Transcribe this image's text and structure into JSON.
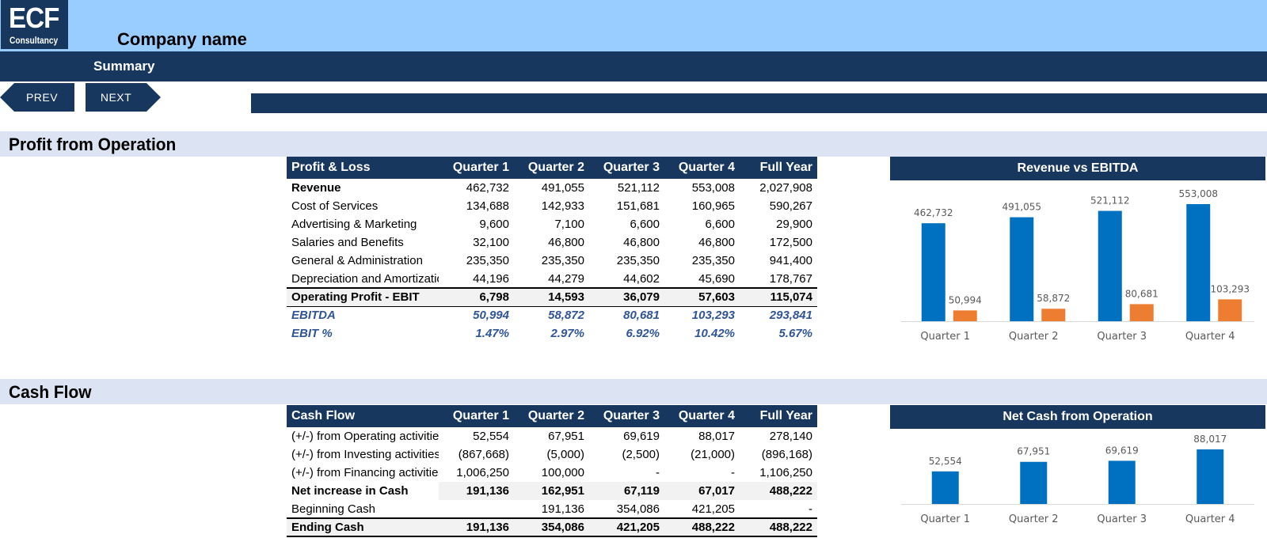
{
  "header": {
    "logo_main": "ECF",
    "logo_sub": "Consultancy",
    "company_name": "Company name",
    "page_title": "Summary"
  },
  "nav": {
    "prev_label": "PREV",
    "next_label": "NEXT"
  },
  "colors": {
    "navy": "#17375e",
    "light_blue": "#99ccff",
    "band": "#dce3f3",
    "bar_blue": "#0070c0",
    "bar_orange": "#ed7d31",
    "kpi_text": "#2f5597"
  },
  "profit": {
    "section_title": "Profit from Operation",
    "headers": [
      "Profit & Loss",
      "Quarter 1",
      "Quarter 2",
      "Quarter 3",
      "Quarter 4",
      "Full Year"
    ],
    "rows": [
      [
        "Revenue",
        "462,732",
        "491,055",
        "521,112",
        "553,008",
        "2,027,908"
      ],
      [
        "Cost of Services",
        "134,688",
        "142,933",
        "151,681",
        "160,965",
        "590,267"
      ],
      [
        "Advertising & Marketing",
        "9,600",
        "7,100",
        "6,600",
        "6,600",
        "29,900"
      ],
      [
        "Salaries and Benefits",
        "32,100",
        "46,800",
        "46,800",
        "46,800",
        "172,500"
      ],
      [
        "General & Administration",
        "235,350",
        "235,350",
        "235,350",
        "235,350",
        "941,400"
      ],
      [
        "Depreciation and Amortization",
        "44,196",
        "44,279",
        "44,602",
        "45,690",
        "178,767"
      ],
      [
        "Operating Profit - EBIT",
        "6,798",
        "14,593",
        "36,079",
        "57,603",
        "115,074"
      ],
      [
        "EBITDA",
        "50,994",
        "58,872",
        "80,681",
        "103,293",
        "293,841"
      ],
      [
        "EBIT %",
        "1.47%",
        "2.97%",
        "6.92%",
        "10.42%",
        "5.67%"
      ]
    ]
  },
  "cashflow": {
    "section_title": "Cash Flow",
    "headers": [
      "Cash Flow",
      "Quarter 1",
      "Quarter 2",
      "Quarter 3",
      "Quarter 4",
      "Full Year"
    ],
    "rows": [
      [
        "(+/-) from Operating activities",
        "52,554",
        "67,951",
        "69,619",
        "88,017",
        "278,140"
      ],
      [
        "(+/-) from Investing activities",
        "(867,668)",
        "(5,000)",
        "(2,500)",
        "(21,000)",
        "(896,168)"
      ],
      [
        "(+/-) from Financing activities",
        "1,006,250",
        "100,000",
        "-",
        "-",
        "1,106,250"
      ],
      [
        "Net increase in Cash",
        "191,136",
        "162,951",
        "67,119",
        "67,017",
        "488,222"
      ],
      [
        "Beginning Cash",
        "",
        "191,136",
        "354,086",
        "421,205",
        "-"
      ],
      [
        "Ending Cash",
        "191,136",
        "354,086",
        "421,205",
        "488,222",
        "488,222"
      ]
    ]
  },
  "chart_data": [
    {
      "type": "bar",
      "title": "Revenue vs EBITDA",
      "categories": [
        "Quarter 1",
        "Quarter 2",
        "Quarter 3",
        "Quarter 4"
      ],
      "series": [
        {
          "values": [
            462732,
            491055,
            521112,
            553008
          ],
          "labels": [
            "462,732",
            "491,055",
            "521,112",
            "553,008"
          ],
          "color": "#0070c0"
        },
        {
          "values": [
            50994,
            58872,
            80681,
            103293
          ],
          "labels": [
            "50,994",
            "58,872",
            "80,681",
            "103,293"
          ],
          "color": "#ed7d31"
        }
      ],
      "grid": false,
      "legend": "none"
    },
    {
      "type": "bar",
      "title": "Net Cash from Operation",
      "categories": [
        "Quarter 1",
        "Quarter 2",
        "Quarter 3",
        "Quarter 4"
      ],
      "series": [
        {
          "values": [
            52554,
            67951,
            69619,
            88017
          ],
          "labels": [
            "52,554",
            "67,951",
            "69,619",
            "88,017"
          ],
          "color": "#0070c0"
        }
      ],
      "grid": false,
      "legend": "none"
    }
  ]
}
